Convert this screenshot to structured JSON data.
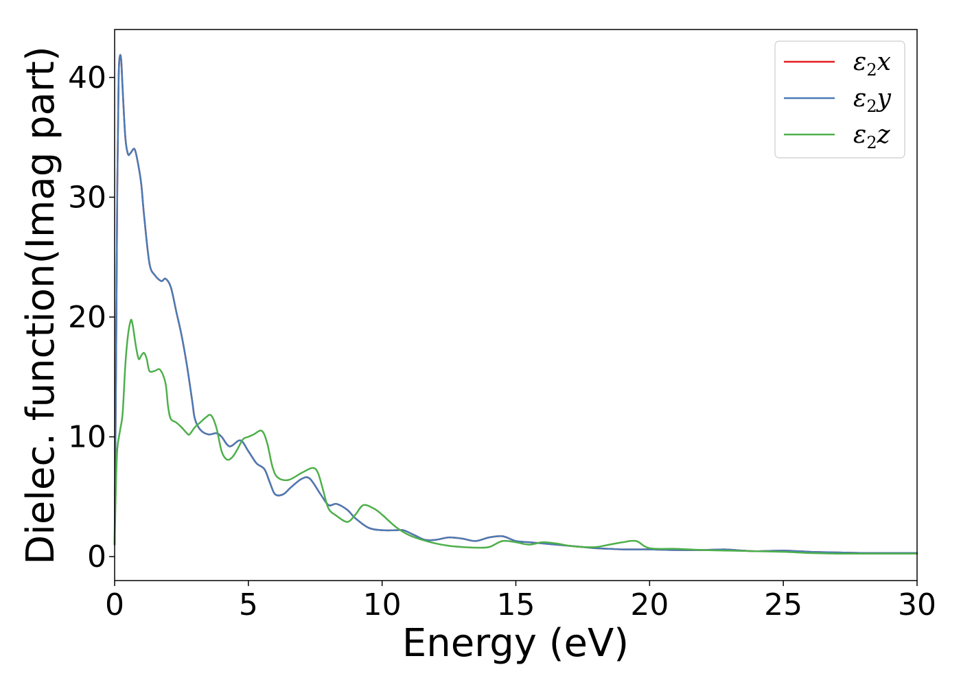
{
  "chart_data": {
    "type": "line",
    "title": "",
    "xlabel": "Energy (eV)",
    "ylabel": "Dielec. function(Imag part)",
    "xlim": [
      0,
      30
    ],
    "ylim": [
      -2,
      44
    ],
    "xticks": [
      0,
      5,
      10,
      15,
      20,
      25,
      30
    ],
    "xtick_labels": [
      "0",
      "5",
      "10",
      "15",
      "20",
      "25",
      "30"
    ],
    "yticks": [
      0,
      10,
      20,
      30,
      40
    ],
    "ytick_labels": [
      "0",
      "10",
      "20",
      "30",
      "40"
    ],
    "grid": false,
    "legend_position": "top-right",
    "series": [
      {
        "name": "ε2x",
        "name_base": "ε",
        "name_sub": "2",
        "name_tail": "x",
        "color": "#e41a1c",
        "x": [
          0,
          0.05,
          0.1,
          0.15,
          0.2,
          0.25,
          0.3,
          0.4,
          0.5,
          0.6,
          0.75,
          0.9,
          1.0,
          1.1,
          1.3,
          1.5,
          1.75,
          1.9,
          2.1,
          2.3,
          2.5,
          2.7,
          2.9,
          3.0,
          3.2,
          3.5,
          3.8,
          4.0,
          4.3,
          4.7,
          5.0,
          5.3,
          5.6,
          5.8,
          6.0,
          6.3,
          6.6,
          7.0,
          7.3,
          7.7,
          8.0,
          8.3,
          8.7,
          9.0,
          9.5,
          10.0,
          10.5,
          10.8,
          11.2,
          11.6,
          12.0,
          12.5,
          13.0,
          13.5,
          14.0,
          14.5,
          15.0,
          15.5,
          16.0,
          16.5,
          17.0,
          17.5,
          18.0,
          18.5,
          19.0,
          19.5,
          20.0,
          21.0,
          22.0,
          22.8,
          23.5,
          24.0,
          25.0,
          26.0,
          27.0,
          28.0,
          29.0,
          30.0
        ],
        "y": [
          1.0,
          15.0,
          31.0,
          40.0,
          41.8,
          41.3,
          39.0,
          35.0,
          33.6,
          33.7,
          34.0,
          32.5,
          31.0,
          28.5,
          24.5,
          23.5,
          23.0,
          23.2,
          22.5,
          20.5,
          18.5,
          16.0,
          13.0,
          11.5,
          10.6,
          10.2,
          10.3,
          10.0,
          9.2,
          9.7,
          8.8,
          7.8,
          7.3,
          6.2,
          5.2,
          5.2,
          5.8,
          6.5,
          6.5,
          5.2,
          4.3,
          4.4,
          3.9,
          3.2,
          2.4,
          2.2,
          2.2,
          2.2,
          1.8,
          1.4,
          1.4,
          1.6,
          1.5,
          1.3,
          1.6,
          1.7,
          1.3,
          1.2,
          1.1,
          1.0,
          0.9,
          0.8,
          0.7,
          0.65,
          0.6,
          0.6,
          0.6,
          0.55,
          0.55,
          0.6,
          0.5,
          0.45,
          0.5,
          0.4,
          0.35,
          0.3,
          0.3,
          0.3
        ]
      },
      {
        "name": "ε2y",
        "name_base": "ε",
        "name_sub": "2",
        "name_tail": "y",
        "color": "#4a7bb5",
        "x": [
          0,
          0.05,
          0.1,
          0.15,
          0.2,
          0.25,
          0.3,
          0.4,
          0.5,
          0.6,
          0.75,
          0.9,
          1.0,
          1.1,
          1.3,
          1.5,
          1.75,
          1.9,
          2.1,
          2.3,
          2.5,
          2.7,
          2.9,
          3.0,
          3.2,
          3.5,
          3.8,
          4.0,
          4.3,
          4.7,
          5.0,
          5.3,
          5.6,
          5.8,
          6.0,
          6.3,
          6.6,
          7.0,
          7.3,
          7.7,
          8.0,
          8.3,
          8.7,
          9.0,
          9.5,
          10.0,
          10.5,
          10.8,
          11.2,
          11.6,
          12.0,
          12.5,
          13.0,
          13.5,
          14.0,
          14.5,
          15.0,
          15.5,
          16.0,
          16.5,
          17.0,
          17.5,
          18.0,
          18.5,
          19.0,
          19.5,
          20.0,
          21.0,
          22.0,
          22.8,
          23.5,
          24.0,
          25.0,
          26.0,
          27.0,
          28.0,
          29.0,
          30.0
        ],
        "y": [
          1.0,
          15.0,
          31.0,
          40.0,
          41.8,
          41.3,
          39.0,
          35.0,
          33.6,
          33.7,
          34.0,
          32.5,
          31.0,
          28.5,
          24.5,
          23.5,
          23.0,
          23.2,
          22.5,
          20.5,
          18.5,
          16.0,
          13.0,
          11.5,
          10.6,
          10.2,
          10.3,
          10.0,
          9.2,
          9.7,
          8.8,
          7.8,
          7.3,
          6.2,
          5.2,
          5.2,
          5.8,
          6.5,
          6.5,
          5.2,
          4.3,
          4.4,
          3.9,
          3.2,
          2.4,
          2.2,
          2.2,
          2.2,
          1.8,
          1.4,
          1.4,
          1.6,
          1.5,
          1.3,
          1.6,
          1.7,
          1.3,
          1.2,
          1.1,
          1.0,
          0.9,
          0.8,
          0.7,
          0.65,
          0.6,
          0.6,
          0.6,
          0.55,
          0.55,
          0.6,
          0.5,
          0.45,
          0.5,
          0.4,
          0.35,
          0.3,
          0.3,
          0.3
        ]
      },
      {
        "name": "ε2z",
        "name_base": "ε",
        "name_sub": "2",
        "name_tail": "z",
        "color": "#4daf4a",
        "x": [
          0,
          0.05,
          0.1,
          0.2,
          0.3,
          0.4,
          0.5,
          0.6,
          0.65,
          0.7,
          0.8,
          0.9,
          1.0,
          1.1,
          1.2,
          1.3,
          1.5,
          1.7,
          1.9,
          2.0,
          2.1,
          2.3,
          2.5,
          2.7,
          2.8,
          3.0,
          3.2,
          3.4,
          3.6,
          3.8,
          4.0,
          4.2,
          4.4,
          4.6,
          4.8,
          5.0,
          5.2,
          5.5,
          5.7,
          5.9,
          6.1,
          6.5,
          7.0,
          7.4,
          7.6,
          7.8,
          8.0,
          8.3,
          8.7,
          9.0,
          9.3,
          9.7,
          10.0,
          10.5,
          11.0,
          11.5,
          12.0,
          12.5,
          13.0,
          13.5,
          14.0,
          14.5,
          15.0,
          15.5,
          16.0,
          16.5,
          17.0,
          17.5,
          18.0,
          18.5,
          19.0,
          19.5,
          20.0,
          21.0,
          22.0,
          23.0,
          24.0,
          25.0,
          26.0,
          27.0,
          28.0,
          29.0,
          30.0
        ],
        "y": [
          1.0,
          6.0,
          9.0,
          10.5,
          12.0,
          16.0,
          18.5,
          19.7,
          19.6,
          19.0,
          17.5,
          16.5,
          16.8,
          17.0,
          16.5,
          15.5,
          15.5,
          15.6,
          14.5,
          12.5,
          11.5,
          11.2,
          10.8,
          10.3,
          10.2,
          10.8,
          11.2,
          11.6,
          11.8,
          10.8,
          8.8,
          8.1,
          8.3,
          9.0,
          9.8,
          10.0,
          10.2,
          10.5,
          9.5,
          7.5,
          6.6,
          6.4,
          7.0,
          7.4,
          7.0,
          5.5,
          4.0,
          3.4,
          2.9,
          3.5,
          4.3,
          4.0,
          3.5,
          2.5,
          1.8,
          1.4,
          1.1,
          0.9,
          0.8,
          0.75,
          0.8,
          1.3,
          1.2,
          1.0,
          1.2,
          1.1,
          0.9,
          0.8,
          0.8,
          1.0,
          1.2,
          1.3,
          0.7,
          0.65,
          0.55,
          0.5,
          0.45,
          0.4,
          0.3,
          0.25,
          0.25,
          0.25,
          0.25
        ]
      }
    ]
  }
}
